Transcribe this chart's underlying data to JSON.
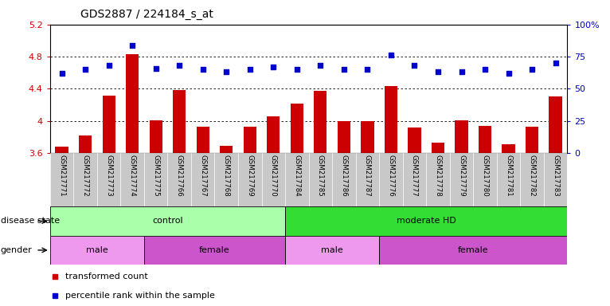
{
  "title": "GDS2887 / 224184_s_at",
  "samples": [
    "GSM217771",
    "GSM217772",
    "GSM217773",
    "GSM217774",
    "GSM217775",
    "GSM217766",
    "GSM217767",
    "GSM217768",
    "GSM217769",
    "GSM217770",
    "GSM217784",
    "GSM217785",
    "GSM217786",
    "GSM217787",
    "GSM217776",
    "GSM217777",
    "GSM217778",
    "GSM217779",
    "GSM217780",
    "GSM217781",
    "GSM217782",
    "GSM217783"
  ],
  "bar_values": [
    3.68,
    3.82,
    4.31,
    4.83,
    4.01,
    4.38,
    3.93,
    3.69,
    3.93,
    4.06,
    4.22,
    4.37,
    4.0,
    4.0,
    4.43,
    3.92,
    3.73,
    4.01,
    3.94,
    3.71,
    3.93,
    4.3
  ],
  "dot_values_pct": [
    62,
    65,
    68,
    84,
    66,
    68,
    65,
    63,
    65,
    67,
    65,
    68,
    65,
    65,
    76,
    68,
    63,
    63,
    65,
    62,
    65,
    70
  ],
  "bar_color": "#cc0000",
  "dot_color": "#0000cc",
  "ylim_left": [
    3.6,
    5.2
  ],
  "yticks_left": [
    3.6,
    4.0,
    4.4,
    4.8,
    5.2
  ],
  "ytick_labels_left": [
    "3.6",
    "4",
    "4.4",
    "4.8",
    "5.2"
  ],
  "ylim_right": [
    0,
    100
  ],
  "yticks_right": [
    0,
    25,
    50,
    75,
    100
  ],
  "ytick_labels_right": [
    "0",
    "25",
    "50",
    "75",
    "100%"
  ],
  "disease_state_groups": [
    {
      "label": "control",
      "start": 0,
      "end": 10,
      "color": "#aaffaa"
    },
    {
      "label": "moderate HD",
      "start": 10,
      "end": 22,
      "color": "#33dd33"
    }
  ],
  "gender_groups": [
    {
      "label": "male",
      "start": 0,
      "end": 4,
      "color": "#ee99ee"
    },
    {
      "label": "female",
      "start": 4,
      "end": 10,
      "color": "#cc55cc"
    },
    {
      "label": "male",
      "start": 10,
      "end": 14,
      "color": "#ee99ee"
    },
    {
      "label": "female",
      "start": 14,
      "end": 22,
      "color": "#cc55cc"
    }
  ],
  "legend_bar_label": "transformed count",
  "legend_dot_label": "percentile rank within the sample",
  "disease_label": "disease state",
  "gender_label": "gender",
  "grid_dotted_values": [
    4.0,
    4.4,
    4.8
  ],
  "bg_color": "#ffffff",
  "plot_bg": "#ffffff",
  "xlabel_bg": "#cccccc",
  "title_fontsize": 10,
  "tick_fontsize": 8,
  "label_fontsize": 8
}
